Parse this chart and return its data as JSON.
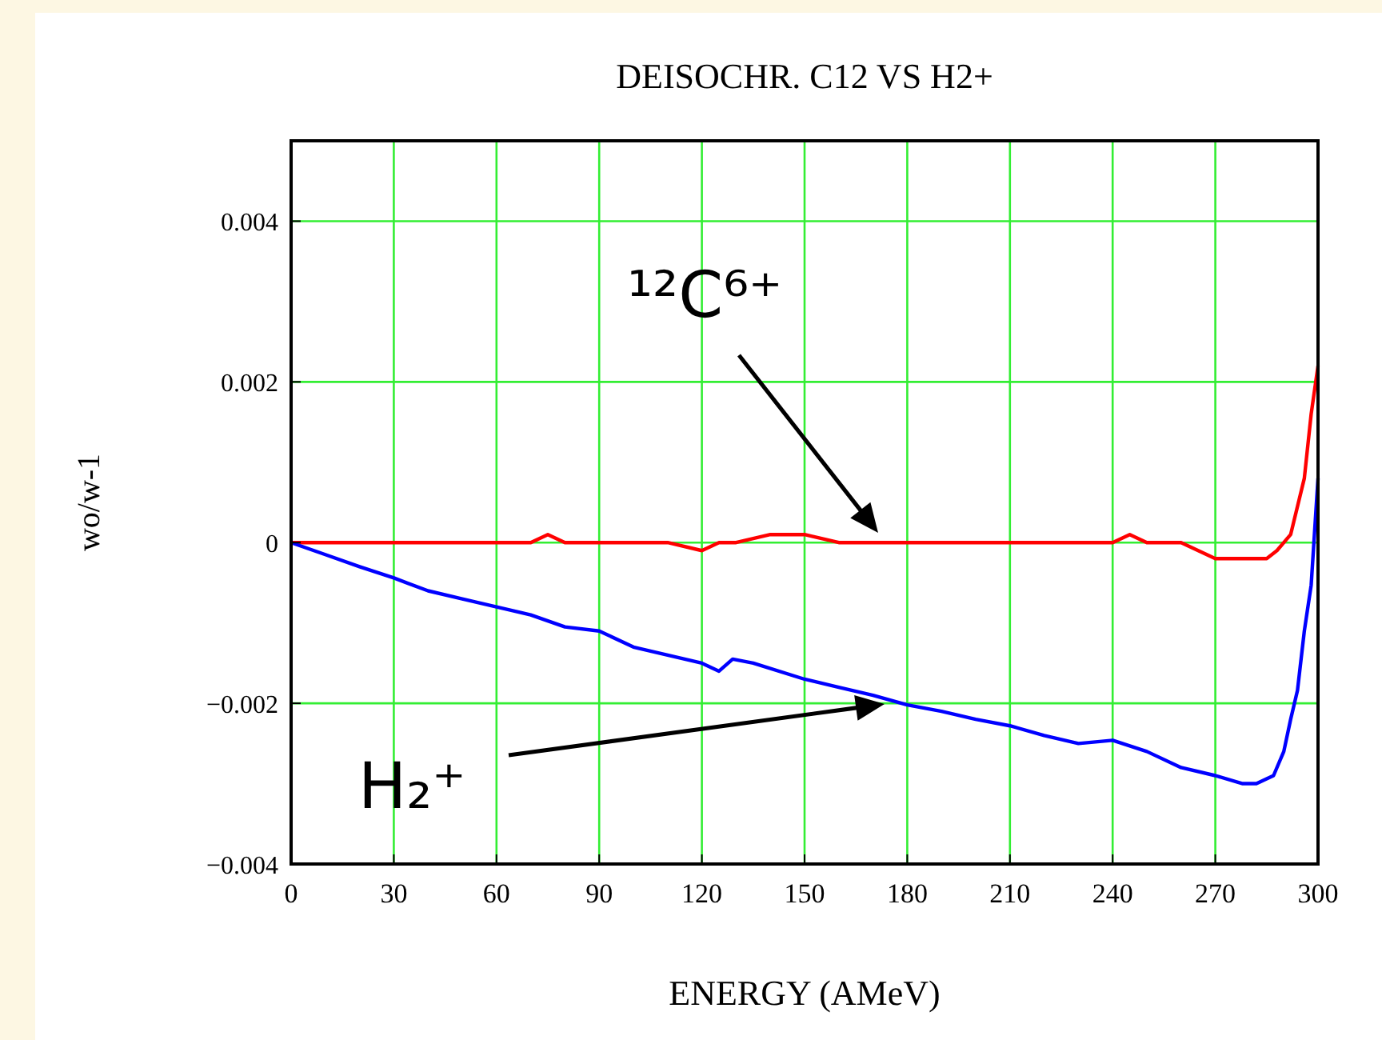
{
  "chart_data": {
    "type": "line",
    "title": "DEISOCHR. C12 VS H2+",
    "xlabel": "ENERGY (AMeV)",
    "ylabel": "wo/w-1",
    "xlim": [
      0,
      300
    ],
    "xticks": [
      0,
      30,
      60,
      90,
      120,
      150,
      180,
      210,
      240,
      270,
      300
    ],
    "ylim": [
      -0.004,
      0.005
    ],
    "yticks": [
      {
        "value": -0.004,
        "label": "−0.004"
      },
      {
        "value": -0.002,
        "label": "−0.002"
      },
      0,
      0.002,
      0.004
    ],
    "grid": true,
    "marker": "none",
    "line_style": "solid",
    "series": [
      {
        "color": "#ff0000",
        "x": [
          0,
          10,
          20,
          30,
          40,
          50,
          60,
          70,
          75,
          80,
          90,
          100,
          110,
          120,
          125,
          130,
          140,
          145,
          150,
          160,
          170,
          180,
          190,
          200,
          210,
          220,
          230,
          240,
          245,
          250,
          260,
          265,
          270,
          275,
          280,
          285,
          288,
          292,
          296,
          298,
          300
        ],
        "values": [
          0,
          0,
          0,
          0,
          0,
          0,
          0,
          0,
          0.0001,
          0,
          0,
          0,
          0,
          -0.0001,
          0,
          0,
          0.0001,
          0.0001,
          0.0001,
          0,
          0,
          0,
          0,
          0,
          0,
          0,
          0,
          0,
          0.0001,
          0,
          0,
          -0.0001,
          -0.0002,
          -0.0002,
          -0.0002,
          -0.0002,
          -0.0001,
          0.0001,
          0.0008,
          0.0016,
          0.0022
        ]
      },
      {
        "color": "#0000ff",
        "x": [
          0,
          10,
          20,
          30,
          40,
          50,
          60,
          70,
          80,
          90,
          100,
          110,
          120,
          125,
          129,
          135,
          150,
          160,
          170,
          180,
          190,
          200,
          210,
          220,
          230,
          240,
          250,
          260,
          270,
          278,
          282,
          287,
          290,
          292,
          294,
          296,
          298,
          300
        ],
        "values": [
          0,
          -0.00015,
          -0.0003,
          -0.00044,
          -0.0006,
          -0.0007,
          -0.0008,
          -0.0009,
          -0.00105,
          -0.0011,
          -0.0013,
          -0.0014,
          -0.0015,
          -0.0016,
          -0.00145,
          -0.0015,
          -0.0017,
          -0.0018,
          -0.0019,
          -0.00202,
          -0.0021,
          -0.0022,
          -0.00228,
          -0.0024,
          -0.0025,
          -0.00246,
          -0.0026,
          -0.0028,
          -0.0029,
          -0.003,
          -0.003,
          -0.0029,
          -0.0026,
          -0.0022,
          -0.00184,
          -0.0011,
          -0.00053,
          0.0008
        ]
      }
    ],
    "annotations": [
      "¹²C⁶⁺",
      "H₂⁺"
    ]
  }
}
